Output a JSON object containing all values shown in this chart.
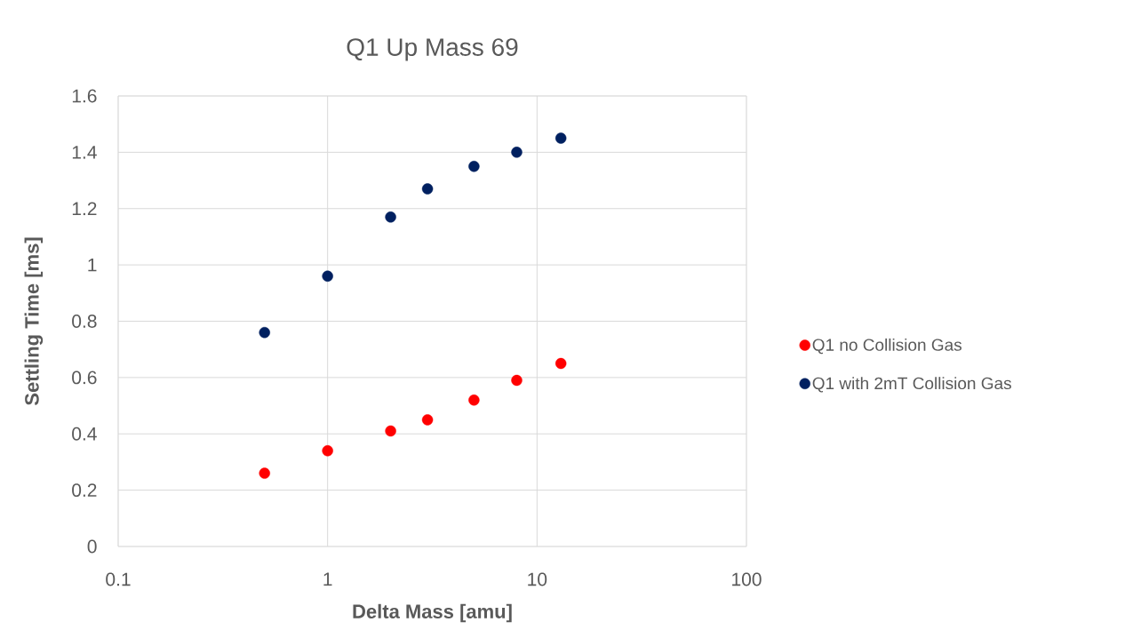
{
  "chart_data": {
    "type": "scatter",
    "title": "Q1 Up Mass 69",
    "xlabel": "Delta Mass [amu]",
    "ylabel": "Settling Time [ms]",
    "x": [
      0.5,
      1,
      2,
      3,
      5,
      8,
      13
    ],
    "series": [
      {
        "name": "Q1 no Collision Gas",
        "color": "#ff0000",
        "values": [
          0.26,
          0.34,
          0.41,
          0.45,
          0.52,
          0.59,
          0.65
        ]
      },
      {
        "name": "Q1 with 2mT Collision Gas",
        "color": "#002060",
        "values": [
          0.76,
          0.96,
          1.17,
          1.27,
          1.35,
          1.4,
          1.45
        ]
      }
    ],
    "log": "x",
    "xlim": [
      0.1,
      100
    ],
    "xticks": [
      0.1,
      1,
      10,
      100
    ],
    "ylim": [
      0,
      1.6
    ],
    "yticks": [
      0,
      0.2,
      0.4,
      0.6,
      0.8,
      1,
      1.2,
      1.4,
      1.6
    ],
    "grid": true,
    "legend": "right",
    "marker": "circle"
  }
}
